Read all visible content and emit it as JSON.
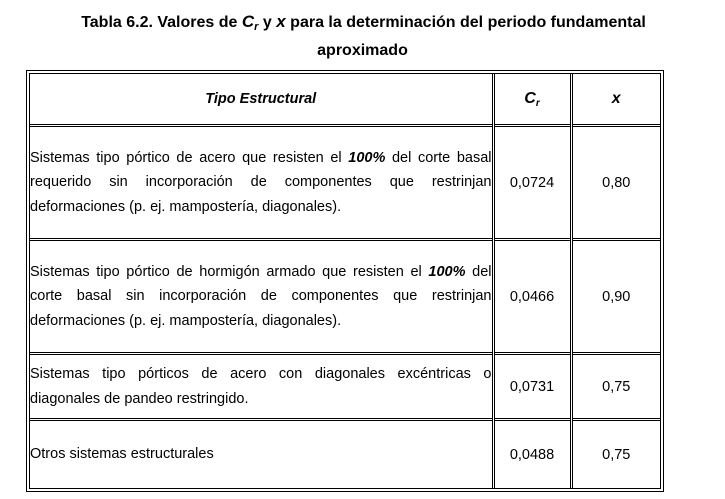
{
  "caption": {
    "prefix": "Tabla 6.2. Valores de",
    "sym_c": "C",
    "sym_c_sub": "r",
    "conj": "y",
    "sym_x": "x",
    "suffix": "para la determinación del periodo fundamental",
    "line2": "aproximado"
  },
  "table": {
    "headers": {
      "tipo": "Tipo Estructural",
      "cr": "C",
      "cr_sub": "r",
      "x": "x"
    },
    "rows": [
      {
        "desc_before": "Sistemas tipo pórtico de acero que resisten el ",
        "desc_bold": "100%",
        "desc_after": " del corte basal requerido sin incorporación de componentes que restrinjan deformaciones (p. ej. mampostería, diagonales).",
        "cr": "0,0724",
        "x": "0,80"
      },
      {
        "desc_before": "Sistemas tipo pórtico de hormigón armado que resisten el ",
        "desc_bold": "100%",
        "desc_after": " del corte basal sin incorporación de componentes que restrinjan deformaciones (p. ej. mampostería, diagonales).",
        "cr": "0,0466",
        "x": "0,90"
      },
      {
        "desc": "Sistemas tipo pórticos de acero con diagonales excéntricas o diagonales de pandeo restringido.",
        "cr": "0,0731",
        "x": "0,75"
      },
      {
        "desc": "Otros sistemas estructurales",
        "cr": "0,0488",
        "x": "0,75"
      }
    ]
  }
}
